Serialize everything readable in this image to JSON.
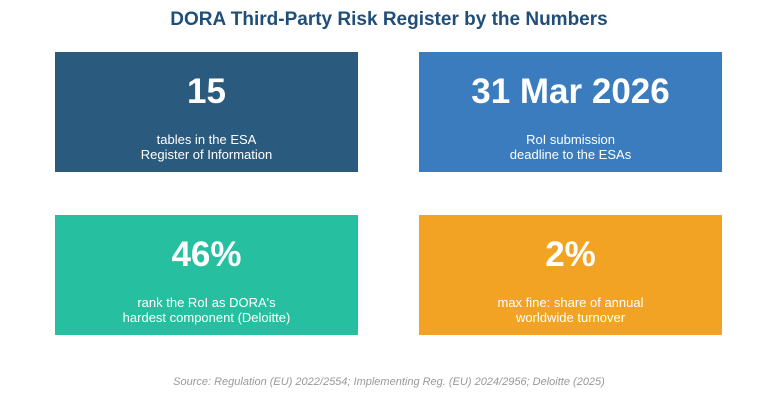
{
  "header": {
    "title": "DORA Third-Party Risk Register by the Numbers"
  },
  "cards": [
    {
      "value": "15",
      "lines": [
        "tables in the ESA",
        "Register of Information"
      ],
      "color": "#2a5a7e"
    },
    {
      "value": "31 Mar 2026",
      "lines": [
        "RoI submission",
        "deadline to the ESAs"
      ],
      "color": "#3a7cbd"
    },
    {
      "value": "46%",
      "lines": [
        "rank the RoI as DORA's",
        "hardest component (Deloitte)"
      ],
      "color": "#26c0a0"
    },
    {
      "value": "2%",
      "lines": [
        "max fine: share of annual",
        "worldwide turnover"
      ],
      "color": "#f3a323"
    }
  ],
  "footer": {
    "source": "Source: Regulation (EU) 2022/2554; Implementing Reg. (EU) 2024/2956; Deloitte (2025)"
  }
}
